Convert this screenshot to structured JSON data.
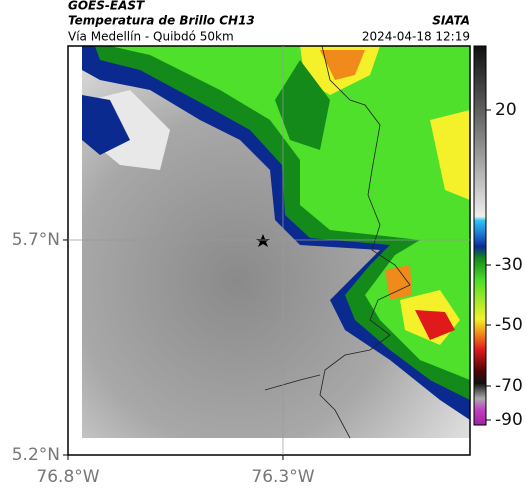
{
  "header": {
    "source": "GOES-EAST",
    "product": "Temperatura de Brillo CH13",
    "route": "Vía Medellín - Quibdó 50km",
    "org": "SIATA",
    "timestamp": "2024-04-18 12:19"
  },
  "map": {
    "xlim": [
      -76.8,
      -75.865
    ],
    "ylim": [
      5.2,
      6.151
    ],
    "xticks": [
      {
        "value": -76.8,
        "label": "76.8°W"
      },
      {
        "value": -76.3,
        "label": "76.3°W"
      }
    ],
    "yticks": [
      {
        "value": 5.7,
        "label": "5.7°N"
      },
      {
        "value": 5.2,
        "label": "5.2°N"
      }
    ],
    "grid": true
  },
  "colorbar": {
    "ticks": [
      20,
      -30,
      -50,
      -70,
      -90
    ]
  }
}
